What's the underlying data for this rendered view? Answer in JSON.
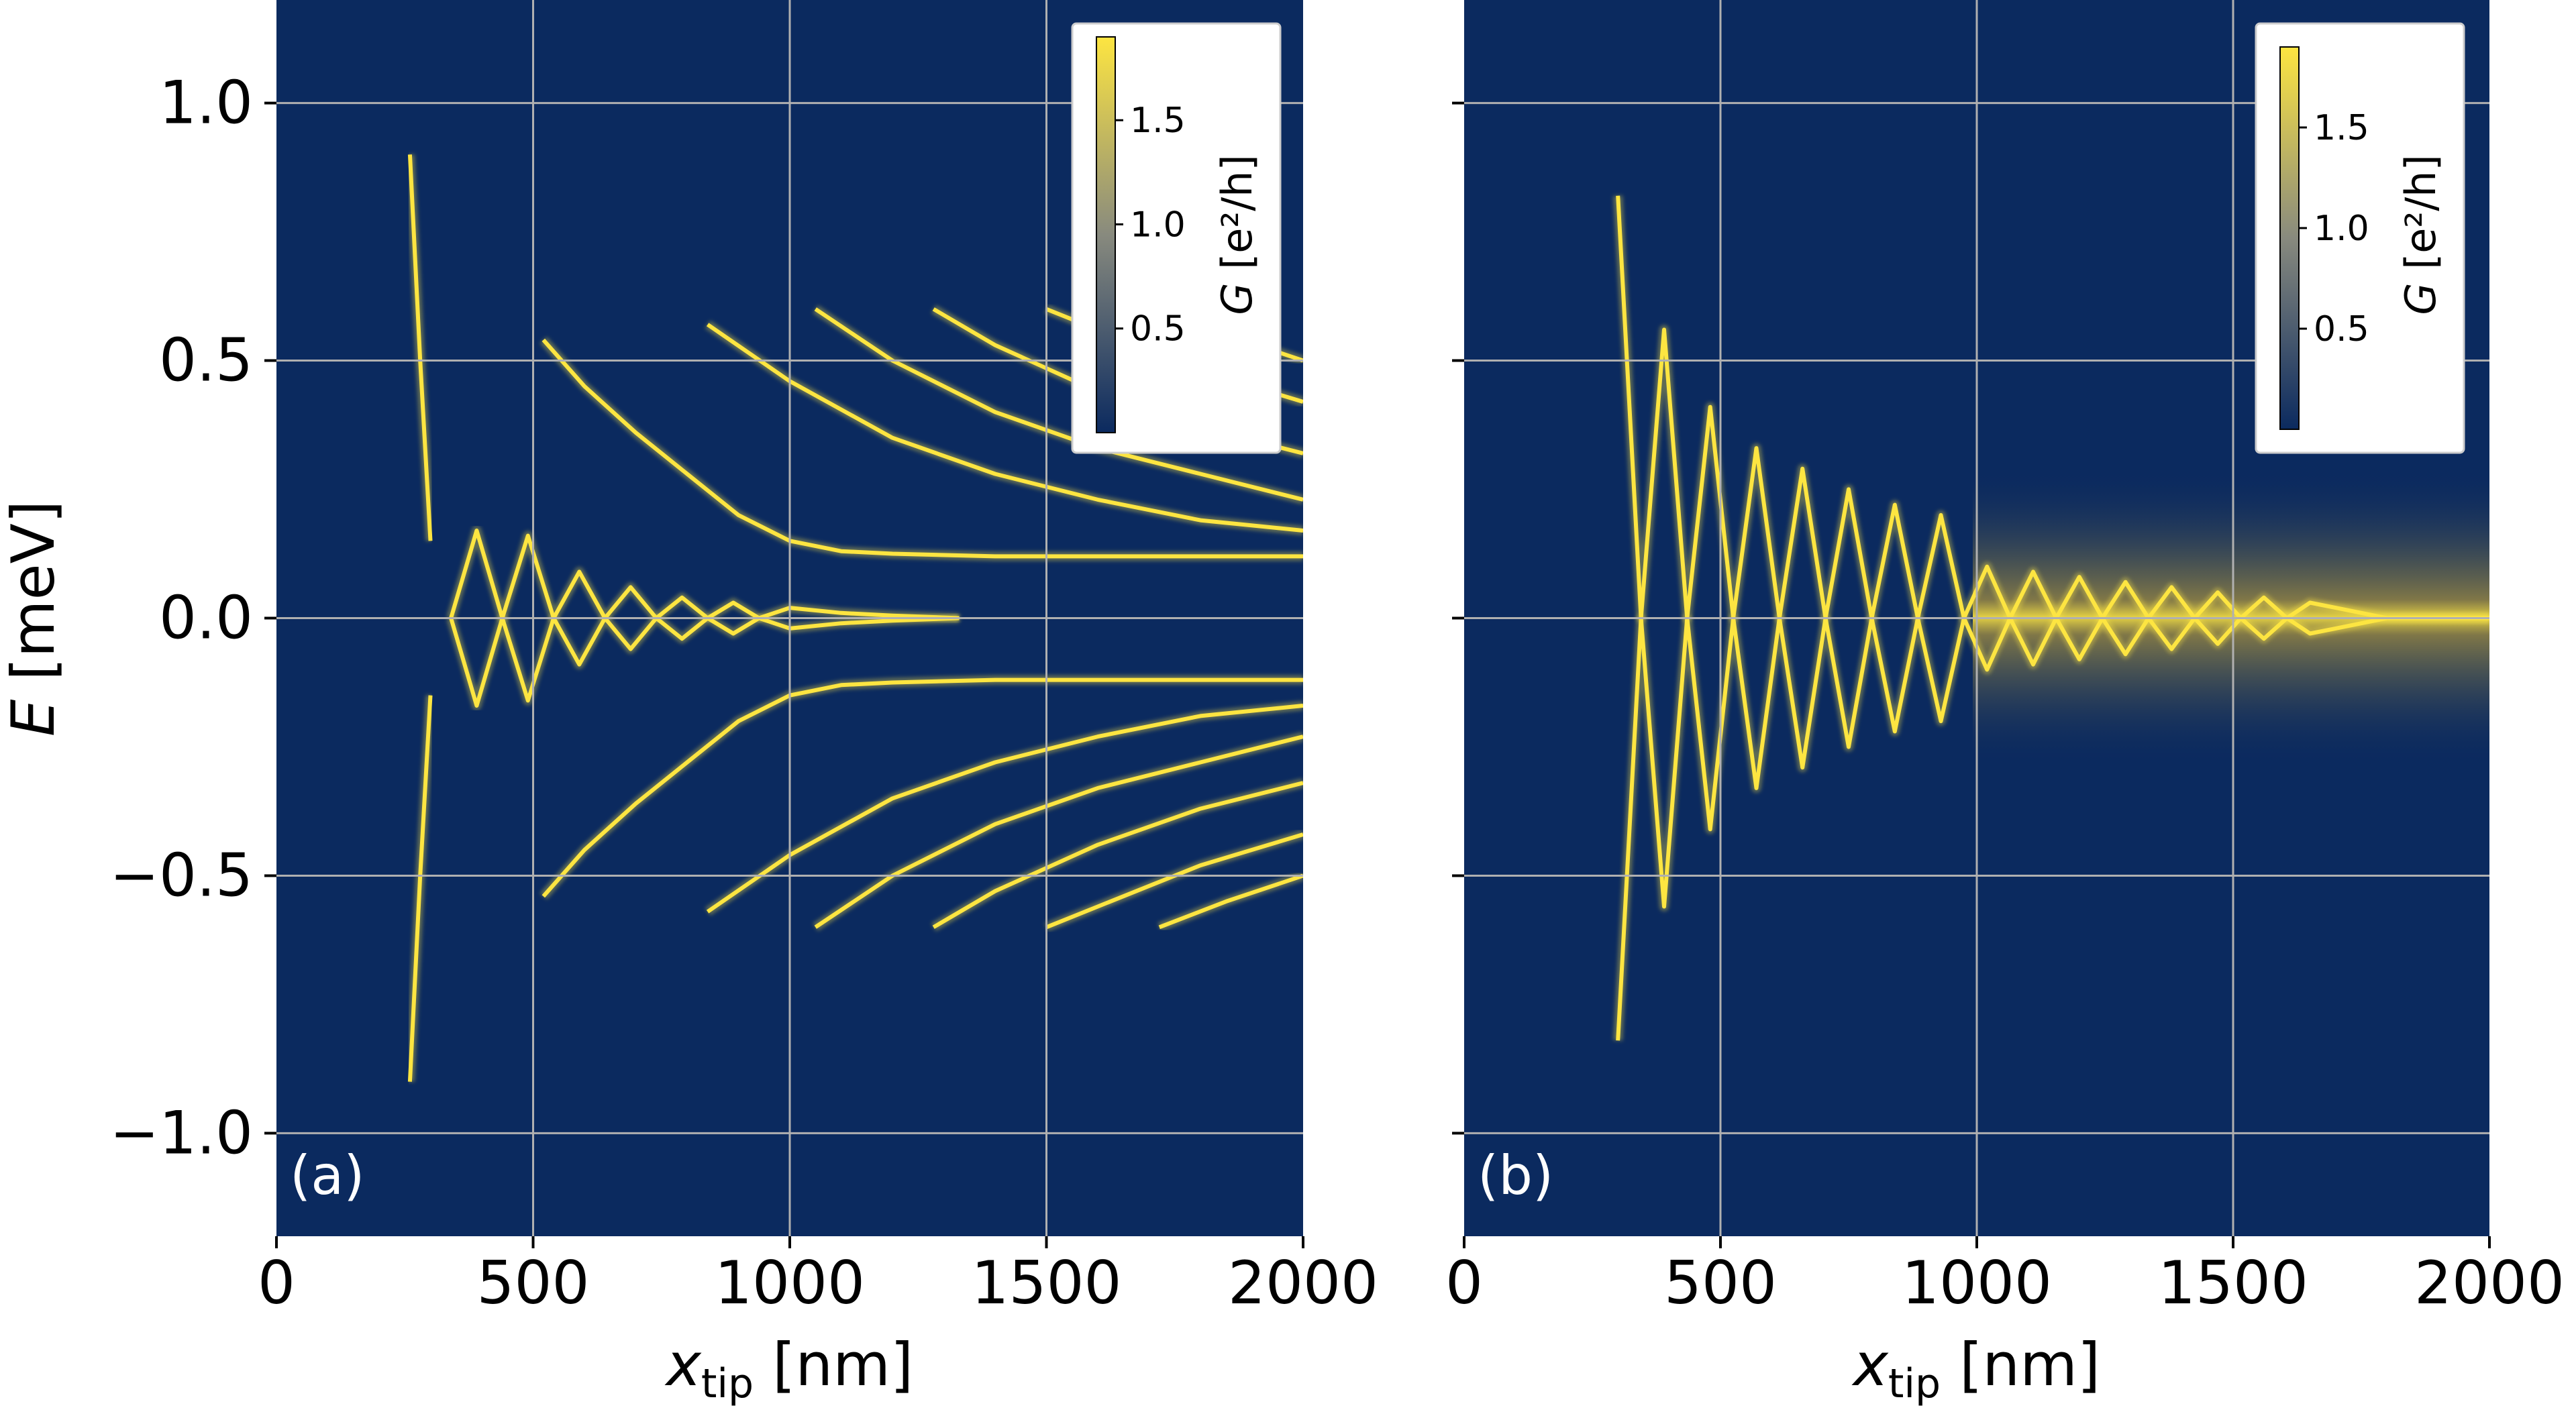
{
  "figure": {
    "panel_a_label": "(a)",
    "panel_b_label": "(b)"
  },
  "chart_data": [
    {
      "type": "heatmap",
      "panel": "(a)",
      "xlabel_main": "x",
      "xlabel_sub": "tip",
      "xlabel_unit": " [nm]",
      "ylabel_main": "E",
      "ylabel_unit": " [meV]",
      "xlim": [
        0,
        2000
      ],
      "ylim": [
        -1.2,
        1.2
      ],
      "xticks": [
        0,
        500,
        1000,
        1500,
        2000
      ],
      "xtick_labels": [
        "0",
        "500",
        "1000",
        "1500",
        "2000"
      ],
      "yticks": [
        1.0,
        0.5,
        0.0,
        -0.5,
        -1.0
      ],
      "ytick_labels": [
        "1.0",
        "0.5",
        "0.0",
        "−0.5",
        "−1.0"
      ],
      "grid": true,
      "colorbar": {
        "label_main": "G",
        "label_unit": "[e²/h]",
        "range": [
          0,
          1.9
        ],
        "ticks": [
          0.5,
          1.0,
          1.5
        ],
        "tick_labels": [
          "0.5",
          "1.0",
          "1.5"
        ],
        "placement": "top-right",
        "colors": [
          "#0b2a5f",
          "#888a7e",
          "#fde541"
        ]
      },
      "series": [
        {
          "x": [
            340,
            390,
            440,
            490,
            540,
            590,
            640,
            690,
            740,
            790,
            840,
            890,
            940,
            1000,
            1100,
            1200,
            1330
          ],
          "y": [
            0.0,
            0.17,
            0.0,
            0.16,
            0.0,
            0.09,
            0.0,
            0.06,
            0.0,
            0.04,
            0.0,
            0.03,
            0.0,
            0.02,
            0.01,
            0.005,
            0.0
          ]
        },
        {
          "x": [
            340,
            390,
            440,
            490,
            540,
            590,
            640,
            690,
            740,
            790,
            840,
            890,
            940,
            1000,
            1100,
            1200,
            1330
          ],
          "y": [
            0.0,
            -0.17,
            0.0,
            -0.16,
            0.0,
            -0.09,
            0.0,
            -0.06,
            0.0,
            -0.04,
            0.0,
            -0.03,
            0.0,
            -0.02,
            -0.01,
            -0.005,
            0.0
          ]
        },
        {
          "x": [
            520,
            600,
            700,
            800,
            900,
            1000,
            1100,
            1200,
            1400,
            1600,
            1800,
            2000
          ],
          "y": [
            0.54,
            0.45,
            0.36,
            0.28,
            0.2,
            0.15,
            0.13,
            0.125,
            0.12,
            0.12,
            0.12,
            0.12
          ]
        },
        {
          "x": [
            520,
            600,
            700,
            800,
            900,
            1000,
            1100,
            1200,
            1400,
            1600,
            1800,
            2000
          ],
          "y": [
            -0.54,
            -0.45,
            -0.36,
            -0.28,
            -0.2,
            -0.15,
            -0.13,
            -0.125,
            -0.12,
            -0.12,
            -0.12,
            -0.12
          ]
        },
        {
          "x": [
            840,
            1000,
            1200,
            1400,
            1600,
            1800,
            2000
          ],
          "y": [
            0.57,
            0.46,
            0.35,
            0.28,
            0.23,
            0.19,
            0.17
          ]
        },
        {
          "x": [
            840,
            1000,
            1200,
            1400,
            1600,
            1800,
            2000
          ],
          "y": [
            -0.57,
            -0.46,
            -0.35,
            -0.28,
            -0.23,
            -0.19,
            -0.17
          ]
        },
        {
          "x": [
            1050,
            1200,
            1400,
            1600,
            1800,
            2000
          ],
          "y": [
            0.6,
            0.5,
            0.4,
            0.33,
            0.28,
            0.23
          ]
        },
        {
          "x": [
            1050,
            1200,
            1400,
            1600,
            1800,
            2000
          ],
          "y": [
            -0.6,
            -0.5,
            -0.4,
            -0.33,
            -0.28,
            -0.23
          ]
        },
        {
          "x": [
            1280,
            1400,
            1600,
            1800,
            2000
          ],
          "y": [
            0.6,
            0.53,
            0.44,
            0.37,
            0.32
          ]
        },
        {
          "x": [
            1280,
            1400,
            1600,
            1800,
            2000
          ],
          "y": [
            -0.6,
            -0.53,
            -0.44,
            -0.37,
            -0.32
          ]
        },
        {
          "x": [
            1500,
            1600,
            1800,
            2000
          ],
          "y": [
            0.6,
            0.56,
            0.48,
            0.42
          ]
        },
        {
          "x": [
            1500,
            1600,
            1800,
            2000
          ],
          "y": [
            -0.6,
            -0.56,
            -0.48,
            -0.42
          ]
        },
        {
          "x": [
            1720,
            1850,
            2000
          ],
          "y": [
            0.6,
            0.55,
            0.5
          ]
        },
        {
          "x": [
            1720,
            1850,
            2000
          ],
          "y": [
            -0.6,
            -0.55,
            -0.5
          ]
        },
        {
          "x": [
            300,
            280,
            260
          ],
          "y": [
            0.15,
            0.5,
            0.9
          ]
        },
        {
          "x": [
            300,
            280,
            260
          ],
          "y": [
            -0.15,
            -0.5,
            -0.9
          ]
        }
      ]
    },
    {
      "type": "heatmap",
      "panel": "(b)",
      "xlabel_main": "x",
      "xlabel_sub": "tip",
      "xlabel_unit": " [nm]",
      "xlim": [
        0,
        2000
      ],
      "ylim": [
        -1.2,
        1.2
      ],
      "xticks": [
        0,
        500,
        1000,
        1500,
        2000
      ],
      "xtick_labels": [
        "0",
        "500",
        "1000",
        "1500",
        "2000"
      ],
      "yticks": [
        1.0,
        0.5,
        0.0,
        -0.5,
        -1.0
      ],
      "grid": true,
      "colorbar": {
        "label_main": "G",
        "label_unit": "[e²/h]",
        "range": [
          0,
          1.9
        ],
        "ticks": [
          0.5,
          1.0,
          1.5
        ],
        "tick_labels": [
          "0.5",
          "1.0",
          "1.5"
        ],
        "placement": "top-right",
        "colors": [
          "#0b2a5f",
          "#888a7e",
          "#fde541"
        ]
      },
      "series": [
        {
          "x": [
            300,
            345,
            390,
            435,
            480,
            525,
            570,
            615,
            660,
            705,
            750,
            795,
            840,
            885,
            930,
            975,
            1020,
            1065,
            1110,
            1155,
            1200,
            1245,
            1290,
            1335,
            1380,
            1425,
            1470,
            1515,
            1560,
            1605,
            1650,
            1700,
            1800,
            1900,
            2000
          ],
          "y": [
            0.82,
            0.0,
            0.56,
            0.0,
            0.41,
            0.0,
            0.33,
            0.0,
            0.29,
            0.0,
            0.25,
            0.0,
            0.22,
            0.0,
            0.2,
            0.0,
            0.1,
            0.0,
            0.09,
            0.0,
            0.08,
            0.0,
            0.07,
            0.0,
            0.06,
            0.0,
            0.05,
            0.0,
            0.04,
            0.0,
            0.03,
            0.02,
            0.0,
            0.0,
            0.0
          ]
        },
        {
          "x": [
            300,
            345,
            390,
            435,
            480,
            525,
            570,
            615,
            660,
            705,
            750,
            795,
            840,
            885,
            930,
            975,
            1020,
            1065,
            1110,
            1155,
            1200,
            1245,
            1290,
            1335,
            1380,
            1425,
            1470,
            1515,
            1560,
            1605,
            1650,
            1700,
            1800,
            1900,
            2000
          ],
          "y": [
            -0.82,
            0.0,
            -0.56,
            0.0,
            -0.41,
            0.0,
            -0.33,
            0.0,
            -0.29,
            0.0,
            -0.25,
            0.0,
            -0.22,
            0.0,
            -0.2,
            0.0,
            -0.1,
            0.0,
            -0.09,
            0.0,
            -0.08,
            0.0,
            -0.07,
            0.0,
            -0.06,
            0.0,
            -0.05,
            0.0,
            -0.04,
            0.0,
            -0.03,
            -0.02,
            0.0,
            0.0,
            0.0
          ]
        }
      ]
    }
  ]
}
